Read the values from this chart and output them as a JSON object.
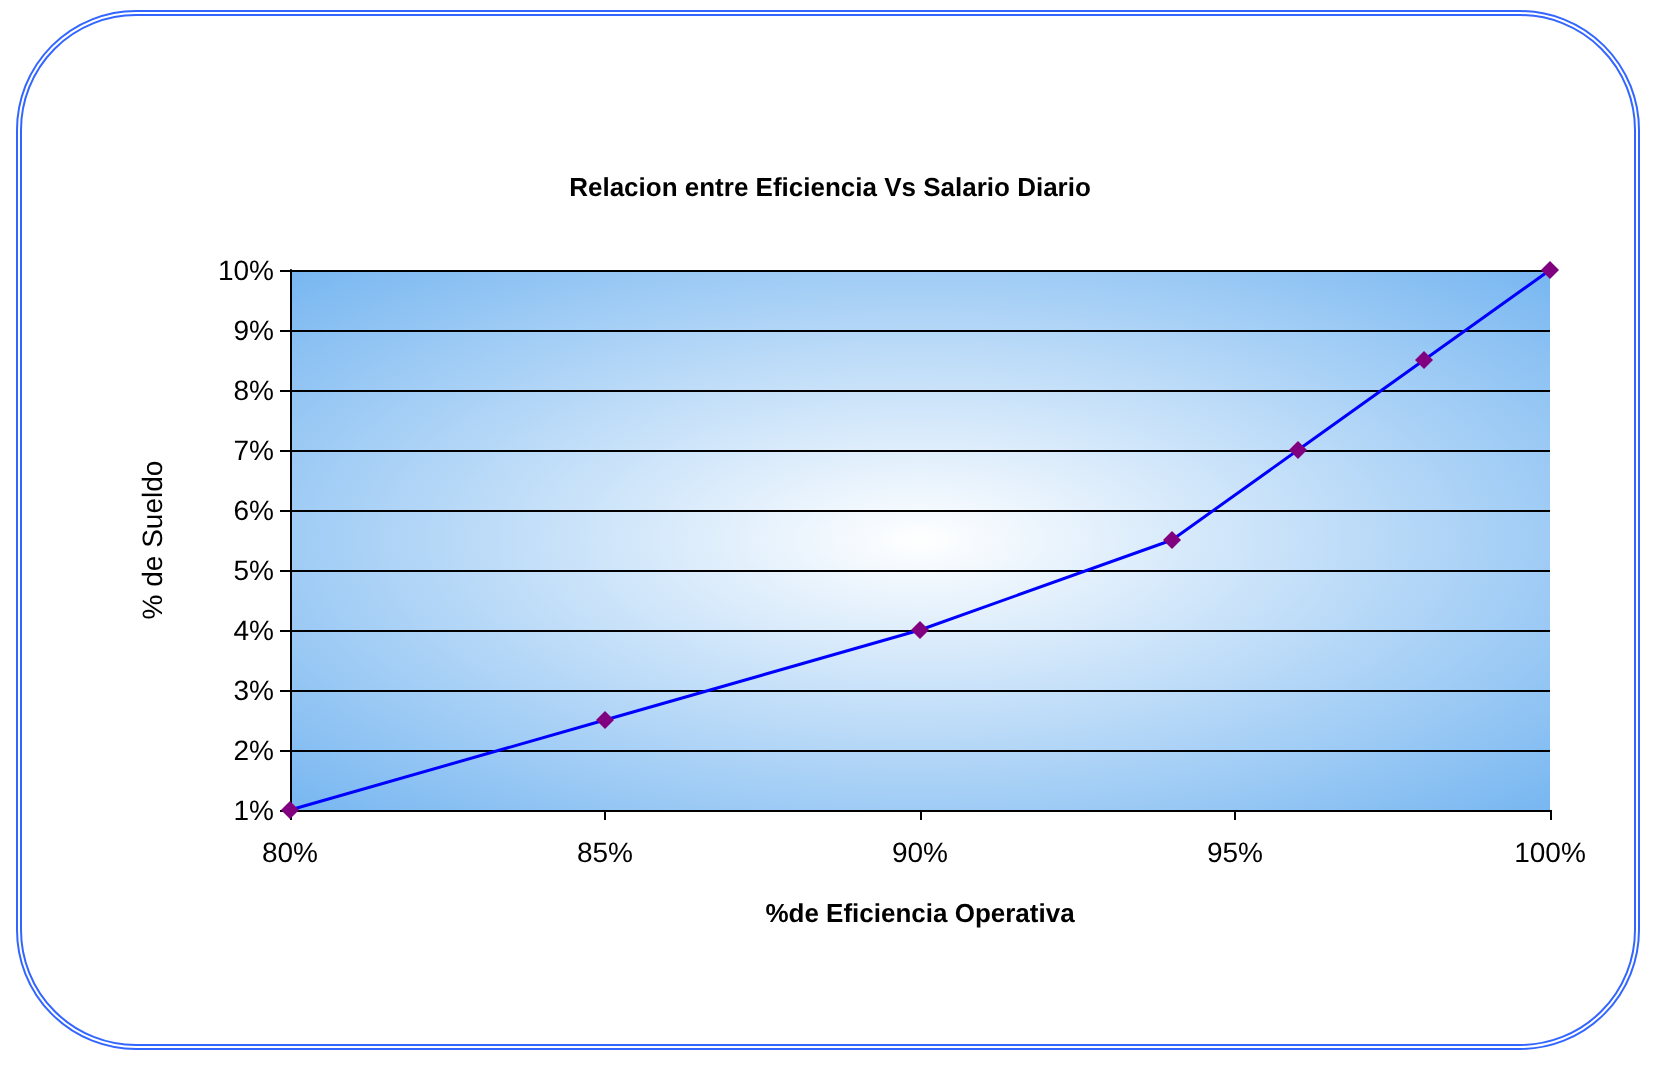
{
  "chart_data": {
    "type": "line",
    "title": "Relacion entre Eficiencia Vs Salario Diario",
    "xlabel": "%de Eficiencia Operativa",
    "ylabel": "% de Sueldo",
    "x": [
      80,
      85,
      90,
      94,
      96,
      98,
      100
    ],
    "series": [
      {
        "color": "#0000ff",
        "values": [
          1,
          2.5,
          4,
          5.5,
          7,
          8.5,
          10
        ]
      }
    ],
    "marker": "diamond",
    "line_style": "solid",
    "grid": "y",
    "xlim": [
      80,
      100
    ],
    "xticks": [
      {
        "value": 80,
        "label": "80%"
      },
      {
        "value": 85,
        "label": "85%"
      },
      {
        "value": 90,
        "label": "90%"
      },
      {
        "value": 95,
        "label": "95%"
      },
      {
        "value": 100,
        "label": "100%"
      }
    ],
    "ylim": [
      1,
      10
    ],
    "yticks": [
      {
        "value": 1,
        "label": "1%"
      },
      {
        "value": 2,
        "label": "2%"
      },
      {
        "value": 3,
        "label": "3%"
      },
      {
        "value": 4,
        "label": "4%"
      },
      {
        "value": 5,
        "label": "5%"
      },
      {
        "value": 6,
        "label": "6%"
      },
      {
        "value": 7,
        "label": "7%"
      },
      {
        "value": 8,
        "label": "8%"
      },
      {
        "value": 9,
        "label": "9%"
      },
      {
        "value": 10,
        "label": "10%"
      }
    ]
  }
}
